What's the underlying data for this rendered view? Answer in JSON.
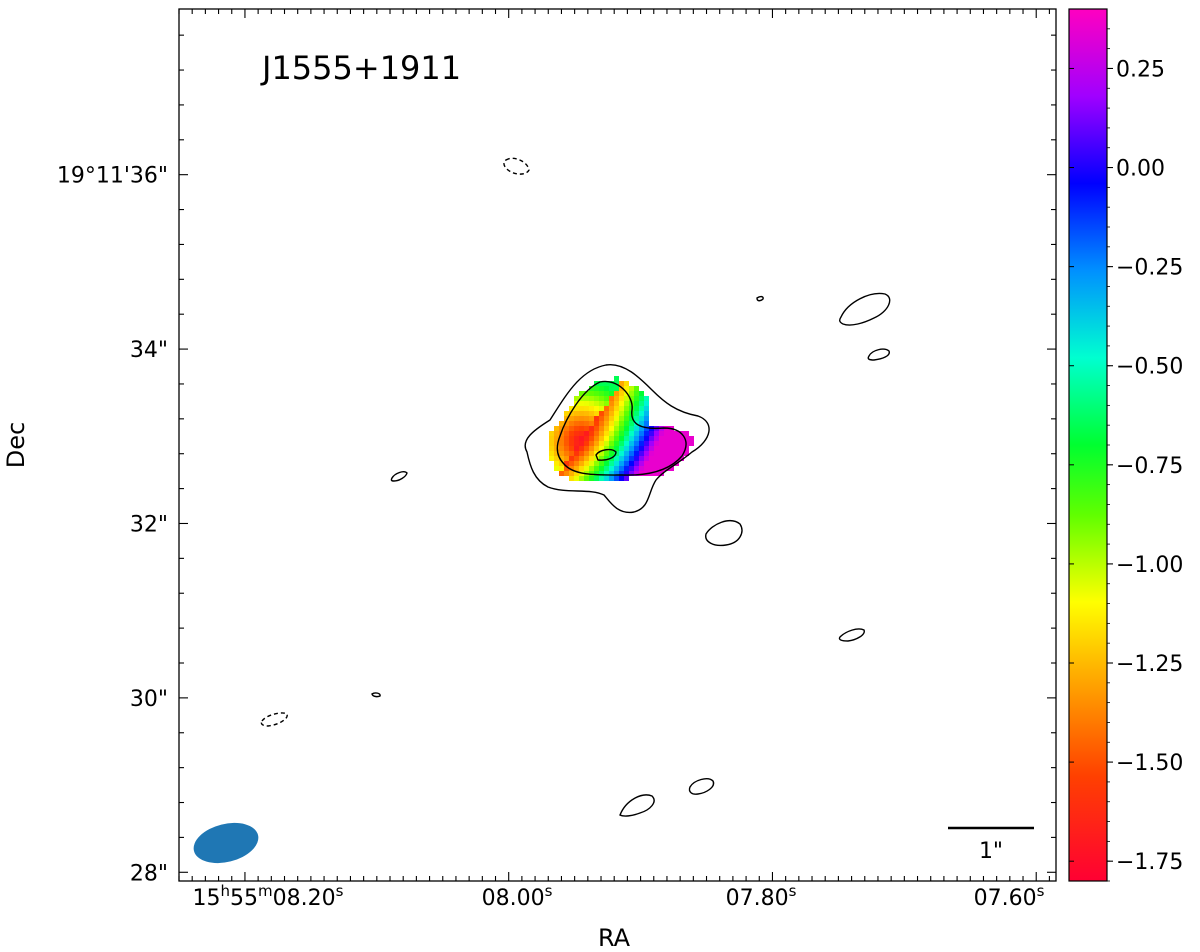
{
  "chart_data": {
    "type": "heatmap",
    "source_label": "J1555+1911",
    "xlabel": "RA",
    "ylabel": "Dec",
    "x_ticks": [
      {
        "prefix": "15",
        "h": "h",
        "m": "55",
        "mm": "m",
        "val": "08.20",
        "s": "s",
        "ra_s": 8.2
      },
      {
        "val": "08.00",
        "s": "s",
        "ra_s": 8.0
      },
      {
        "val": "07.80",
        "s": "s",
        "ra_s": 7.8
      },
      {
        "val": "07.60",
        "s": "s",
        "ra_s": 7.6
      }
    ],
    "y_ticks": [
      {
        "label": "19°11'36\"",
        "dec_arcsec": 36
      },
      {
        "label": "34\"",
        "dec_arcsec": 34
      },
      {
        "label": "32\"",
        "dec_arcsec": 32
      },
      {
        "label": "30\"",
        "dec_arcsec": 30
      },
      {
        "label": "28\"",
        "dec_arcsec": 28
      }
    ],
    "xlim_ra_seconds": [
      8.25,
      7.585
    ],
    "ylim_dec_arcsec": [
      27.9,
      37.9
    ],
    "colorbar": {
      "range": [
        -1.8,
        0.4
      ],
      "ticks": [
        0.25,
        0.0,
        -0.25,
        -0.5,
        -0.75,
        -1.0,
        -1.25,
        -1.5,
        -1.75
      ],
      "tick_labels": [
        "0.25",
        "0.00",
        "−0.25",
        "−0.50",
        "−0.75",
        "−1.00",
        "−1.25",
        "−1.50",
        "−1.75"
      ],
      "colormap": "gist_rainbow"
    },
    "spectral_index_map": {
      "center": {
        "ra_s": 7.945,
        "dec_arcsec": 32.95
      },
      "min_value": -1.75,
      "max_value": 0.35,
      "description_gradient": "steep (red) in north-west core, flat/inverted (magenta) toward south-east"
    },
    "contours": [
      {
        "style": "solid",
        "level": "outer",
        "ra_s": 7.925,
        "dec_arcsec": 32.9
      },
      {
        "style": "solid",
        "level": "inner",
        "ra_s": 7.92,
        "dec_arcsec": 32.95
      },
      {
        "style": "solid",
        "ra_s": 7.92,
        "dec_arcsec": 32.7
      },
      {
        "style": "dashed",
        "ra_s": 8.0,
        "dec_arcsec": 36.0
      },
      {
        "style": "dashed",
        "ra_s": 8.15,
        "dec_arcsec": 29.65
      },
      {
        "style": "solid",
        "ra_s": 7.8,
        "dec_arcsec": 34.5
      },
      {
        "style": "solid",
        "ra_s": 7.71,
        "dec_arcsec": 34.35
      },
      {
        "style": "solid",
        "ra_s": 7.705,
        "dec_arcsec": 33.85
      },
      {
        "style": "solid",
        "ra_s": 8.085,
        "dec_arcsec": 32.45
      },
      {
        "style": "solid",
        "ra_s": 7.815,
        "dec_arcsec": 31.75
      },
      {
        "style": "solid",
        "ra_s": 7.725,
        "dec_arcsec": 30.6
      },
      {
        "style": "solid",
        "ra_s": 8.1,
        "dec_arcsec": 29.95
      },
      {
        "style": "solid",
        "ra_s": 7.89,
        "dec_arcsec": 28.65
      },
      {
        "style": "solid",
        "ra_s": 7.845,
        "dec_arcsec": 28.9
      }
    ],
    "beam": {
      "color": "#1f77b4",
      "ra_s": 8.22,
      "dec_arcsec": 28.2
    },
    "scale_bar": {
      "label": "1\"",
      "length_arcsec": 1
    }
  }
}
